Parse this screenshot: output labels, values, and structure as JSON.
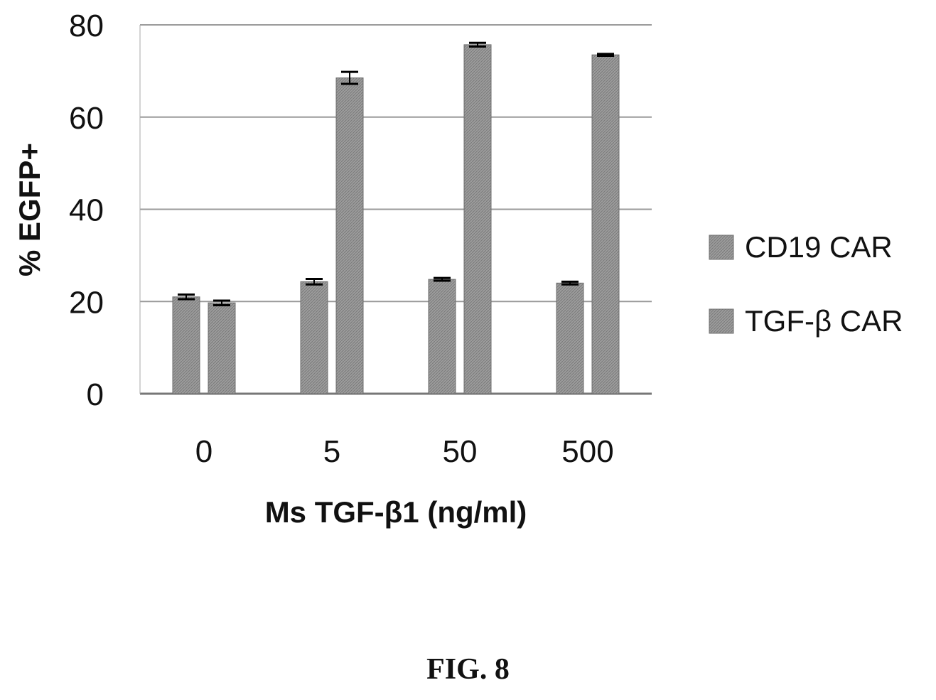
{
  "chart_data": {
    "type": "bar",
    "categories": [
      "0",
      "5",
      "50",
      "500"
    ],
    "series": [
      {
        "name": "CD19 CAR",
        "values": [
          21,
          24.3,
          24.8,
          24
        ],
        "errors": [
          0.5,
          0.6,
          0.3,
          0.3
        ],
        "color": "#8f8f8f"
      },
      {
        "name": "TGF-β CAR",
        "values": [
          19.7,
          68.5,
          75.7,
          73.5
        ],
        "errors": [
          0.5,
          1.3,
          0.4,
          0.2
        ],
        "color": "#9a9a9a"
      }
    ],
    "xlabel": "Ms TGF-β1 (ng/ml)",
    "ylabel": "% EGFP+",
    "ylim": [
      0,
      80
    ],
    "yticks": [
      "0",
      "20",
      "40",
      "60",
      "80"
    ],
    "grid": true,
    "legend_position": "right"
  },
  "figure_label": "FIG. 8"
}
